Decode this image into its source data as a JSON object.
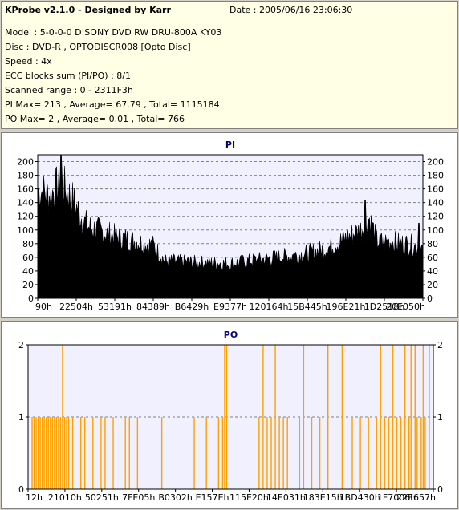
{
  "header": {
    "title": "KProbe v2.1.0 - Designed by Karr",
    "date": "Date : 2005/06/16 23:06:30",
    "lines": [
      "Model : 5-0-0-0 D:SONY    DVD RW DRU-800A  KY03",
      "Disc : DVD-R , OPTODISCR008 [Opto Disc]",
      "Speed : 4x",
      "ECC blocks sum (PI/PO) : 8/1",
      "Scanned range : 0 - 2311F3h",
      "PI Max= 213 , Average= 67.79 , Total= 1115184",
      "PO Max= 2 , Average= 0.01 , Total= 766"
    ]
  },
  "chart_data": [
    {
      "type": "area",
      "title": "PI",
      "color": "#000000",
      "ylim": [
        0,
        210
      ],
      "yticks": [
        0,
        20,
        40,
        60,
        80,
        100,
        120,
        140,
        160,
        180,
        200
      ],
      "xtick_labels": [
        "90h",
        "22504h",
        "53191h",
        "84389h",
        "B6429h",
        "E9377h",
        "120164h",
        "15B445h",
        "196E21h",
        "1D2518h",
        "20E050h"
      ],
      "grid": true,
      "profile": [
        [
          0.0,
          175
        ],
        [
          0.03,
          165
        ],
        [
          0.06,
          185
        ],
        [
          0.09,
          158
        ],
        [
          0.115,
          128
        ],
        [
          0.13,
          115
        ],
        [
          0.2,
          100
        ],
        [
          0.25,
          92
        ],
        [
          0.3,
          85
        ],
        [
          0.33,
          60
        ],
        [
          0.4,
          58
        ],
        [
          0.5,
          56
        ],
        [
          0.6,
          64
        ],
        [
          0.7,
          72
        ],
        [
          0.75,
          80
        ],
        [
          0.8,
          96
        ],
        [
          0.84,
          110
        ],
        [
          0.86,
          130
        ],
        [
          0.875,
          105
        ],
        [
          0.88,
          92
        ],
        [
          0.93,
          90
        ],
        [
          0.97,
          86
        ],
        [
          1.0,
          78
        ]
      ],
      "peaks": [
        [
          0.06,
          213
        ],
        [
          0.85,
          143
        ],
        [
          0.99,
          110
        ]
      ]
    },
    {
      "type": "bar",
      "title": "PO",
      "color": "#ffa000",
      "ylim": [
        0,
        2
      ],
      "yticks": [
        0,
        1,
        2
      ],
      "xtick_labels": [
        "12h",
        "21010h",
        "50251h",
        "7FE05h",
        "B0302h",
        "E157Eh",
        "115E20h",
        "14E031h",
        "183E15h",
        "1BD430h",
        "1F7006h",
        "22E657h"
      ],
      "grid": true,
      "twos": [
        0.085,
        0.485,
        0.49,
        0.58,
        0.61,
        0.68,
        0.74,
        0.775,
        0.87,
        0.9,
        0.93,
        0.945,
        0.955,
        0.975,
        0.99
      ],
      "ones": [
        0.01,
        0.015,
        0.02,
        0.025,
        0.03,
        0.035,
        0.04,
        0.045,
        0.05,
        0.055,
        0.06,
        0.065,
        0.07,
        0.075,
        0.08,
        0.09,
        0.095,
        0.1,
        0.11,
        0.13,
        0.14,
        0.16,
        0.18,
        0.19,
        0.21,
        0.24,
        0.25,
        0.27,
        0.33,
        0.41,
        0.44,
        0.47,
        0.48,
        0.57,
        0.59,
        0.6,
        0.62,
        0.63,
        0.64,
        0.67,
        0.7,
        0.72,
        0.8,
        0.82,
        0.84,
        0.86,
        0.88,
        0.89,
        0.91,
        0.92,
        0.94,
        0.96,
        0.97,
        0.98
      ]
    }
  ]
}
